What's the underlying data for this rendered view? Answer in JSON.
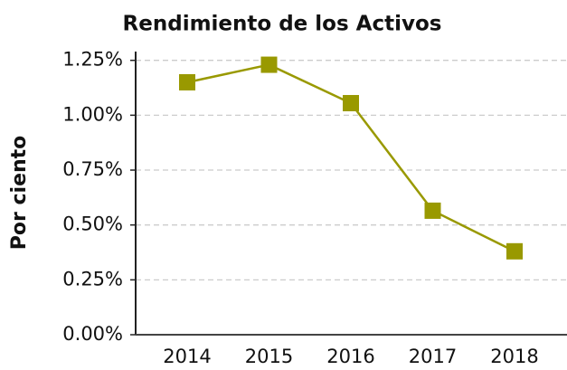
{
  "chart_data": {
    "type": "line",
    "title": "Rendimiento de los Activos",
    "y_label": "Por ciento",
    "categories": [
      "2014",
      "2015",
      "2016",
      "2017",
      "2018"
    ],
    "series": [
      {
        "name": "Rendimiento de los Activos",
        "color": "#999900",
        "values": [
          1.15,
          1.23,
          1.055,
          0.565,
          0.38
        ]
      }
    ],
    "ylim": [
      0,
      1.29
    ],
    "yticks": [
      {
        "value": 0,
        "label": "0.00%"
      },
      {
        "value": 0.25,
        "label": "0.25%"
      },
      {
        "value": 0.5,
        "label": "0.50%"
      },
      {
        "value": 0.75,
        "label": "0.75%"
      },
      {
        "value": 1,
        "label": "1.00%"
      },
      {
        "value": 1.25,
        "label": "1.25%"
      }
    ],
    "grid": true
  }
}
